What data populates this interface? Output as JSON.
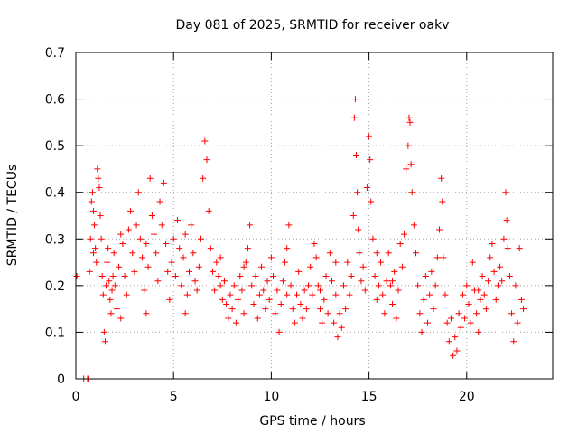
{
  "chart_data": {
    "type": "scatter",
    "title": "Day 081 of 2025, SRMTID for receiver oakv",
    "xlabel": "GPS time / hours",
    "ylabel": "SRMTID / TECUs",
    "xlim": [
      0,
      24.4
    ],
    "ylim": [
      0,
      0.7
    ],
    "xticks": [
      0,
      5,
      10,
      15,
      20
    ],
    "yticks": [
      0,
      0.1,
      0.2,
      0.3,
      0.4,
      0.5,
      0.6,
      0.7
    ],
    "xtick_labels": [
      "0",
      "5",
      "10",
      "15",
      "20"
    ],
    "ytick_labels": [
      "0",
      "0.1",
      "0.2",
      "0.3",
      "0.4",
      "0.5",
      "0.6",
      "0.7"
    ],
    "grid": true,
    "marker": "plus",
    "color": "#ff0000",
    "series": [
      {
        "name": "SRMTID",
        "points": [
          [
            0.05,
            0.22
          ],
          [
            0.4,
            0.0
          ],
          [
            0.6,
            0.0
          ],
          [
            0.65,
            0.0
          ],
          [
            0.7,
            0.23
          ],
          [
            0.75,
            0.3
          ],
          [
            0.8,
            0.38
          ],
          [
            0.85,
            0.4
          ],
          [
            0.9,
            0.36
          ],
          [
            0.95,
            0.33
          ],
          [
            1.0,
            0.28
          ],
          [
            1.05,
            0.25
          ],
          [
            1.1,
            0.45
          ],
          [
            1.15,
            0.43
          ],
          [
            1.2,
            0.41
          ],
          [
            1.25,
            0.35
          ],
          [
            1.3,
            0.3
          ],
          [
            1.35,
            0.22
          ],
          [
            1.4,
            0.18
          ],
          [
            1.45,
            0.1
          ],
          [
            1.5,
            0.08
          ],
          [
            1.55,
            0.2
          ],
          [
            1.6,
            0.25
          ],
          [
            1.65,
            0.28
          ],
          [
            1.7,
            0.21
          ],
          [
            1.75,
            0.17
          ],
          [
            1.8,
            0.14
          ],
          [
            1.85,
            0.19
          ],
          [
            1.9,
            0.22
          ],
          [
            1.95,
            0.27
          ],
          [
            2.0,
            0.2
          ],
          [
            2.1,
            0.15
          ],
          [
            2.2,
            0.24
          ],
          [
            2.3,
            0.13
          ],
          [
            2.4,
            0.29
          ],
          [
            2.5,
            0.22
          ],
          [
            2.6,
            0.18
          ],
          [
            2.7,
            0.32
          ],
          [
            2.8,
            0.36
          ],
          [
            2.9,
            0.27
          ],
          [
            3.0,
            0.23
          ],
          [
            3.1,
            0.33
          ],
          [
            3.2,
            0.4
          ],
          [
            3.3,
            0.3
          ],
          [
            3.4,
            0.26
          ],
          [
            3.5,
            0.19
          ],
          [
            3.6,
            0.14
          ],
          [
            3.7,
            0.24
          ],
          [
            3.8,
            0.43
          ],
          [
            3.9,
            0.35
          ],
          [
            4.0,
            0.31
          ],
          [
            4.1,
            0.27
          ],
          [
            4.2,
            0.21
          ],
          [
            4.3,
            0.38
          ],
          [
            4.4,
            0.33
          ],
          [
            4.5,
            0.42
          ],
          [
            4.6,
            0.29
          ],
          [
            4.7,
            0.23
          ],
          [
            4.8,
            0.17
          ],
          [
            4.9,
            0.25
          ],
          [
            5.0,
            0.3
          ],
          [
            5.1,
            0.22
          ],
          [
            5.2,
            0.34
          ],
          [
            5.3,
            0.28
          ],
          [
            5.4,
            0.2
          ],
          [
            5.5,
            0.26
          ],
          [
            5.6,
            0.31
          ],
          [
            5.7,
            0.18
          ],
          [
            5.8,
            0.23
          ],
          [
            5.9,
            0.33
          ],
          [
            6.0,
            0.27
          ],
          [
            6.1,
            0.21
          ],
          [
            6.2,
            0.19
          ],
          [
            6.3,
            0.24
          ],
          [
            6.4,
            0.3
          ],
          [
            6.5,
            0.43
          ],
          [
            6.6,
            0.51
          ],
          [
            6.7,
            0.47
          ],
          [
            6.8,
            0.36
          ],
          [
            6.9,
            0.28
          ],
          [
            7.0,
            0.23
          ],
          [
            7.1,
            0.19
          ],
          [
            7.2,
            0.25
          ],
          [
            7.3,
            0.22
          ],
          [
            7.4,
            0.2
          ],
          [
            7.5,
            0.17
          ],
          [
            7.6,
            0.21
          ],
          [
            7.7,
            0.16
          ],
          [
            7.8,
            0.13
          ],
          [
            7.9,
            0.18
          ],
          [
            8.0,
            0.15
          ],
          [
            8.1,
            0.2
          ],
          [
            8.2,
            0.12
          ],
          [
            8.3,
            0.17
          ],
          [
            8.4,
            0.22
          ],
          [
            8.5,
            0.19
          ],
          [
            8.6,
            0.14
          ],
          [
            8.7,
            0.25
          ],
          [
            8.8,
            0.28
          ],
          [
            8.9,
            0.33
          ],
          [
            9.0,
            0.2
          ],
          [
            9.1,
            0.16
          ],
          [
            9.2,
            0.22
          ],
          [
            9.3,
            0.13
          ],
          [
            9.4,
            0.18
          ],
          [
            9.5,
            0.24
          ],
          [
            9.6,
            0.19
          ],
          [
            9.7,
            0.15
          ],
          [
            9.8,
            0.21
          ],
          [
            9.9,
            0.17
          ],
          [
            10.0,
            0.26
          ],
          [
            10.1,
            0.22
          ],
          [
            10.2,
            0.14
          ],
          [
            10.3,
            0.19
          ],
          [
            10.4,
            0.1
          ],
          [
            10.5,
            0.16
          ],
          [
            10.6,
            0.21
          ],
          [
            10.7,
            0.25
          ],
          [
            10.8,
            0.18
          ],
          [
            10.9,
            0.33
          ],
          [
            11.0,
            0.2
          ],
          [
            11.1,
            0.15
          ],
          [
            11.2,
            0.12
          ],
          [
            11.3,
            0.18
          ],
          [
            11.4,
            0.23
          ],
          [
            11.5,
            0.16
          ],
          [
            11.6,
            0.13
          ],
          [
            11.7,
            0.19
          ],
          [
            11.8,
            0.15
          ],
          [
            11.9,
            0.2
          ],
          [
            12.0,
            0.24
          ],
          [
            12.1,
            0.18
          ],
          [
            12.2,
            0.29
          ],
          [
            12.3,
            0.26
          ],
          [
            12.4,
            0.2
          ],
          [
            12.5,
            0.15
          ],
          [
            12.6,
            0.12
          ],
          [
            12.7,
            0.17
          ],
          [
            12.8,
            0.22
          ],
          [
            12.9,
            0.14
          ],
          [
            13.0,
            0.27
          ],
          [
            13.1,
            0.21
          ],
          [
            13.2,
            0.12
          ],
          [
            13.3,
            0.18
          ],
          [
            13.4,
            0.09
          ],
          [
            13.5,
            0.14
          ],
          [
            13.6,
            0.11
          ],
          [
            13.7,
            0.2
          ],
          [
            13.8,
            0.15
          ],
          [
            13.9,
            0.25
          ],
          [
            14.0,
            0.18
          ],
          [
            14.1,
            0.22
          ],
          [
            14.2,
            0.35
          ],
          [
            14.25,
            0.56
          ],
          [
            14.3,
            0.6
          ],
          [
            14.35,
            0.48
          ],
          [
            14.4,
            0.4
          ],
          [
            14.45,
            0.32
          ],
          [
            14.5,
            0.27
          ],
          [
            14.6,
            0.21
          ],
          [
            14.7,
            0.24
          ],
          [
            14.8,
            0.19
          ],
          [
            14.9,
            0.41
          ],
          [
            15.0,
            0.52
          ],
          [
            15.05,
            0.47
          ],
          [
            15.1,
            0.38
          ],
          [
            15.2,
            0.3
          ],
          [
            15.3,
            0.22
          ],
          [
            15.4,
            0.17
          ],
          [
            15.5,
            0.2
          ],
          [
            15.6,
            0.25
          ],
          [
            15.7,
            0.18
          ],
          [
            15.8,
            0.14
          ],
          [
            15.9,
            0.21
          ],
          [
            16.0,
            0.27
          ],
          [
            16.1,
            0.2
          ],
          [
            16.2,
            0.16
          ],
          [
            16.3,
            0.23
          ],
          [
            16.4,
            0.13
          ],
          [
            16.5,
            0.19
          ],
          [
            16.6,
            0.29
          ],
          [
            16.7,
            0.24
          ],
          [
            16.8,
            0.31
          ],
          [
            16.9,
            0.45
          ],
          [
            17.0,
            0.5
          ],
          [
            17.05,
            0.56
          ],
          [
            17.1,
            0.55
          ],
          [
            17.15,
            0.46
          ],
          [
            17.2,
            0.4
          ],
          [
            17.3,
            0.33
          ],
          [
            17.4,
            0.27
          ],
          [
            17.5,
            0.2
          ],
          [
            17.6,
            0.14
          ],
          [
            17.7,
            0.1
          ],
          [
            17.8,
            0.17
          ],
          [
            17.9,
            0.22
          ],
          [
            18.0,
            0.12
          ],
          [
            18.1,
            0.18
          ],
          [
            18.2,
            0.23
          ],
          [
            18.3,
            0.15
          ],
          [
            18.4,
            0.2
          ],
          [
            18.5,
            0.26
          ],
          [
            18.6,
            0.32
          ],
          [
            18.7,
            0.43
          ],
          [
            18.75,
            0.38
          ],
          [
            18.8,
            0.26
          ],
          [
            18.9,
            0.18
          ],
          [
            19.0,
            0.12
          ],
          [
            19.1,
            0.08
          ],
          [
            19.2,
            0.13
          ],
          [
            19.3,
            0.05
          ],
          [
            19.4,
            0.09
          ],
          [
            19.5,
            0.06
          ],
          [
            19.6,
            0.14
          ],
          [
            19.7,
            0.11
          ],
          [
            19.8,
            0.18
          ],
          [
            19.9,
            0.13
          ],
          [
            20.0,
            0.2
          ],
          [
            20.1,
            0.16
          ],
          [
            20.2,
            0.12
          ],
          [
            20.3,
            0.25
          ],
          [
            20.4,
            0.19
          ],
          [
            20.5,
            0.14
          ],
          [
            20.6,
            0.1
          ],
          [
            20.7,
            0.17
          ],
          [
            20.8,
            0.22
          ],
          [
            20.9,
            0.18
          ],
          [
            21.0,
            0.15
          ],
          [
            21.1,
            0.21
          ],
          [
            21.2,
            0.26
          ],
          [
            21.3,
            0.29
          ],
          [
            21.4,
            0.23
          ],
          [
            21.5,
            0.17
          ],
          [
            21.6,
            0.2
          ],
          [
            21.7,
            0.24
          ],
          [
            21.8,
            0.21
          ],
          [
            21.9,
            0.3
          ],
          [
            22.0,
            0.4
          ],
          [
            22.05,
            0.34
          ],
          [
            22.1,
            0.28
          ],
          [
            22.2,
            0.22
          ],
          [
            22.3,
            0.14
          ],
          [
            22.4,
            0.08
          ],
          [
            22.5,
            0.2
          ],
          [
            22.6,
            0.12
          ],
          [
            22.7,
            0.28
          ],
          [
            22.8,
            0.17
          ],
          [
            22.9,
            0.15
          ],
          [
            0.9,
            0.27
          ],
          [
            2.3,
            0.31
          ],
          [
            3.6,
            0.29
          ],
          [
            5.6,
            0.14
          ],
          [
            7.4,
            0.26
          ],
          [
            8.6,
            0.24
          ],
          [
            10.8,
            0.28
          ],
          [
            12.5,
            0.19
          ],
          [
            13.3,
            0.25
          ],
          [
            15.4,
            0.27
          ],
          [
            16.2,
            0.21
          ],
          [
            20.6,
            0.19
          ]
        ]
      }
    ]
  }
}
